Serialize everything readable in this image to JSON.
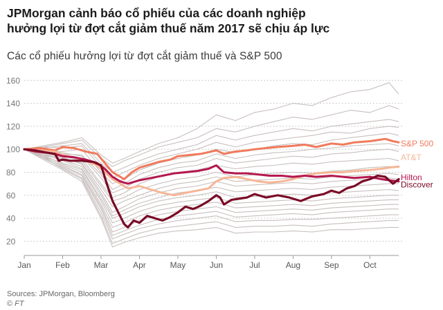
{
  "header": {
    "title_line1": "JPMorgan cảnh báo cổ phiếu của các doanh nghiệp",
    "title_line2": "hưởng lợi từ đợt cắt giảm thuế năm 2017 sẽ chịu áp lực"
  },
  "footer": {
    "source": "Sources: JPMorgan, Bloomberg",
    "credit_symbol": "©",
    "credit": "FT"
  },
  "chart_data": {
    "type": "line",
    "title": "Các cổ phiếu hưởng lợi từ đợt cắt giảm thuế và S&P 500",
    "xlabel": "",
    "ylabel": "",
    "xlim": [
      0,
      9.75
    ],
    "ylim": [
      10,
      165
    ],
    "x_ticks": [
      {
        "label": "Jan",
        "value": 0
      },
      {
        "label": "Feb",
        "value": 1
      },
      {
        "label": "Mar",
        "value": 2
      },
      {
        "label": "Apr",
        "value": 3
      },
      {
        "label": "May",
        "value": 4
      },
      {
        "label": "Jun",
        "value": 5
      },
      {
        "label": "Jul",
        "value": 6
      },
      {
        "label": "Aug",
        "value": 7
      },
      {
        "label": "Sep",
        "value": 8
      },
      {
        "label": "Oct",
        "value": 9
      }
    ],
    "y_ticks": [
      20,
      40,
      60,
      80,
      100,
      120,
      140,
      160
    ],
    "grid": "horizontal dotted",
    "background_series": {
      "color": "#c7bfbd",
      "x": [
        0,
        0.5,
        1,
        1.5,
        2,
        2.3,
        2.6,
        3,
        3.5,
        4,
        4.5,
        5,
        5.5,
        6,
        6.5,
        7,
        7.5,
        8,
        8.5,
        9,
        9.5,
        9.75
      ],
      "series": [
        {
          "values": [
            100,
            103,
            106,
            110,
            95,
            88,
            92,
            98,
            105,
            110,
            118,
            130,
            125,
            132,
            135,
            140,
            138,
            145,
            150,
            152,
            158,
            148
          ]
        },
        {
          "values": [
            100,
            102,
            105,
            108,
            92,
            85,
            90,
            95,
            102,
            106,
            110,
            118,
            115,
            120,
            124,
            128,
            126,
            130,
            134,
            132,
            138,
            135
          ]
        },
        {
          "values": [
            100,
            101,
            103,
            105,
            88,
            80,
            84,
            90,
            96,
            100,
            104,
            112,
            108,
            112,
            115,
            118,
            116,
            120,
            122,
            124,
            126,
            124
          ]
        },
        {
          "values": [
            100,
            102,
            101,
            103,
            85,
            75,
            80,
            86,
            92,
            96,
            100,
            106,
            102,
            106,
            108,
            110,
            112,
            115,
            114,
            118,
            120,
            119
          ]
        },
        {
          "values": [
            100,
            99,
            98,
            100,
            80,
            70,
            74,
            82,
            88,
            92,
            95,
            100,
            97,
            100,
            103,
            105,
            104,
            108,
            110,
            112,
            114,
            112
          ]
        },
        {
          "values": [
            100,
            98,
            96,
            95,
            78,
            65,
            70,
            78,
            84,
            88,
            90,
            96,
            92,
            95,
            97,
            98,
            100,
            101,
            103,
            104,
            105,
            103
          ]
        },
        {
          "values": [
            100,
            99,
            97,
            94,
            75,
            62,
            66,
            74,
            80,
            84,
            86,
            92,
            88,
            90,
            92,
            94,
            93,
            96,
            97,
            99,
            100,
            98
          ]
        },
        {
          "values": [
            100,
            97,
            95,
            92,
            70,
            58,
            62,
            70,
            76,
            80,
            82,
            86,
            83,
            85,
            86,
            88,
            87,
            89,
            90,
            91,
            92,
            90
          ]
        },
        {
          "values": [
            100,
            98,
            94,
            90,
            68,
            55,
            58,
            65,
            70,
            74,
            76,
            80,
            76,
            78,
            79,
            80,
            79,
            81,
            82,
            84,
            85,
            84
          ]
        },
        {
          "values": [
            100,
            96,
            92,
            88,
            65,
            50,
            55,
            60,
            66,
            70,
            72,
            76,
            72,
            73,
            74,
            75,
            74,
            76,
            77,
            78,
            79,
            78
          ]
        },
        {
          "values": [
            100,
            97,
            93,
            87,
            62,
            45,
            50,
            57,
            62,
            66,
            68,
            72,
            68,
            69,
            70,
            71,
            70,
            72,
            73,
            74,
            75,
            74
          ]
        },
        {
          "values": [
            100,
            95,
            91,
            85,
            60,
            42,
            47,
            53,
            58,
            62,
            64,
            67,
            63,
            64,
            65,
            66,
            65,
            67,
            68,
            69,
            70,
            70
          ]
        },
        {
          "values": [
            100,
            96,
            90,
            83,
            57,
            40,
            44,
            50,
            55,
            58,
            60,
            63,
            58,
            59,
            60,
            61,
            60,
            62,
            63,
            64,
            65,
            64
          ]
        },
        {
          "values": [
            100,
            94,
            88,
            82,
            55,
            36,
            40,
            46,
            51,
            54,
            56,
            58,
            53,
            54,
            55,
            56,
            55,
            57,
            58,
            59,
            60,
            60
          ]
        },
        {
          "values": [
            100,
            95,
            87,
            80,
            52,
            32,
            36,
            42,
            47,
            50,
            52,
            54,
            49,
            50,
            51,
            52,
            51,
            53,
            54,
            55,
            56,
            56
          ]
        },
        {
          "values": [
            100,
            93,
            86,
            78,
            50,
            28,
            32,
            38,
            43,
            46,
            48,
            50,
            45,
            46,
            47,
            48,
            47,
            49,
            50,
            51,
            52,
            52
          ]
        },
        {
          "values": [
            100,
            94,
            85,
            77,
            48,
            25,
            29,
            34,
            39,
            42,
            44,
            46,
            41,
            42,
            43,
            44,
            43,
            45,
            46,
            47,
            48,
            48
          ]
        },
        {
          "values": [
            100,
            92,
            84,
            75,
            45,
            22,
            26,
            31,
            35,
            38,
            40,
            42,
            37,
            38,
            38,
            39,
            39,
            40,
            41,
            42,
            43,
            43
          ]
        },
        {
          "values": [
            100,
            93,
            83,
            74,
            42,
            18,
            22,
            27,
            31,
            33,
            35,
            37,
            32,
            33,
            33,
            34,
            33,
            35,
            36,
            37,
            38,
            38
          ]
        },
        {
          "values": [
            100,
            91,
            82,
            72,
            40,
            15,
            19,
            23,
            27,
            29,
            30,
            32,
            27,
            28,
            28,
            29,
            28,
            30,
            30,
            31,
            32,
            32
          ]
        }
      ]
    },
    "series": [
      {
        "name": "S&P 500",
        "color": "#f07a5c",
        "width": 3,
        "x": [
          0,
          0.4,
          0.8,
          1.0,
          1.3,
          1.6,
          1.9,
          2.1,
          2.3,
          2.5,
          2.6,
          2.8,
          3.0,
          3.2,
          3.5,
          3.8,
          4.0,
          4.3,
          4.6,
          5.0,
          5.2,
          5.5,
          5.8,
          6.0,
          6.3,
          6.6,
          7.0,
          7.3,
          7.6,
          8.0,
          8.3,
          8.6,
          9.0,
          9.2,
          9.4,
          9.6,
          9.75
        ],
        "values": [
          100,
          101,
          99,
          102,
          101,
          98,
          96,
          88,
          80,
          76,
          74,
          80,
          84,
          86,
          89,
          91,
          94,
          95,
          96,
          99,
          96,
          98,
          99,
          100,
          101,
          102,
          103,
          104,
          102,
          105,
          104,
          106,
          107,
          108,
          109,
          107,
          106
        ]
      },
      {
        "name": "AT&T",
        "color": "#f5b697",
        "width": 3,
        "x": [
          0,
          0.4,
          0.8,
          1.0,
          1.3,
          1.6,
          1.9,
          2.1,
          2.3,
          2.5,
          2.7,
          3.0,
          3.3,
          3.6,
          3.9,
          4.2,
          4.5,
          4.8,
          5.0,
          5.2,
          5.5,
          5.8,
          6.1,
          6.4,
          6.7,
          7.0,
          7.3,
          7.6,
          8.0,
          8.3,
          8.6,
          9.0,
          9.3,
          9.5,
          9.75
        ],
        "values": [
          100,
          99,
          98,
          95,
          93,
          90,
          86,
          80,
          74,
          70,
          66,
          68,
          65,
          62,
          60,
          62,
          64,
          66,
          72,
          75,
          76,
          74,
          72,
          71,
          72,
          74,
          77,
          79,
          80,
          80,
          81,
          82,
          83,
          84,
          85
        ]
      },
      {
        "name": "Hilton",
        "color": "#b5174f",
        "width": 3,
        "x": [
          0,
          0.3,
          0.6,
          0.8,
          1.0,
          1.3,
          1.6,
          1.9,
          2.1,
          2.3,
          2.5,
          2.7,
          3.0,
          3.3,
          3.6,
          3.9,
          4.2,
          4.5,
          4.8,
          5.0,
          5.2,
          5.5,
          5.8,
          6.1,
          6.4,
          6.7,
          7.0,
          7.3,
          7.6,
          8.0,
          8.3,
          8.6,
          9.0,
          9.3,
          9.5,
          9.75
        ],
        "values": [
          100,
          98,
          97,
          96,
          94,
          93,
          91,
          88,
          83,
          76,
          72,
          70,
          73,
          75,
          77,
          79,
          80,
          81,
          83,
          86,
          80,
          79,
          79,
          78,
          77,
          77,
          76,
          77,
          76,
          77,
          76,
          75,
          76,
          74,
          73,
          72
        ]
      },
      {
        "name": "Discover",
        "color": "#7a0a25",
        "width": 3.2,
        "x": [
          0,
          0.3,
          0.6,
          0.8,
          0.9,
          1.0,
          1.2,
          1.5,
          1.8,
          2.0,
          2.15,
          2.3,
          2.45,
          2.6,
          2.7,
          2.85,
          3.0,
          3.2,
          3.4,
          3.6,
          3.8,
          4.0,
          4.2,
          4.4,
          4.6,
          4.8,
          5.0,
          5.1,
          5.2,
          5.4,
          5.6,
          5.8,
          6.0,
          6.3,
          6.6,
          6.9,
          7.2,
          7.5,
          7.8,
          8.0,
          8.2,
          8.4,
          8.6,
          8.8,
          9.0,
          9.2,
          9.4,
          9.6,
          9.75
        ],
        "values": [
          100,
          99,
          97,
          96,
          90,
          91,
          90,
          90,
          89,
          86,
          70,
          55,
          45,
          35,
          32,
          38,
          36,
          42,
          40,
          38,
          41,
          45,
          50,
          48,
          51,
          55,
          60,
          58,
          52,
          56,
          57,
          58,
          61,
          58,
          60,
          58,
          55,
          59,
          61,
          64,
          62,
          66,
          68,
          72,
          74,
          77,
          76,
          70,
          74
        ]
      }
    ],
    "labels": [
      {
        "text": "S&P 500",
        "series": "S&P 500"
      },
      {
        "text": "AT&T",
        "series": "AT&T"
      },
      {
        "text": "Hilton",
        "series": "Hilton"
      },
      {
        "text": "Discover",
        "series": "Discover"
      }
    ]
  }
}
